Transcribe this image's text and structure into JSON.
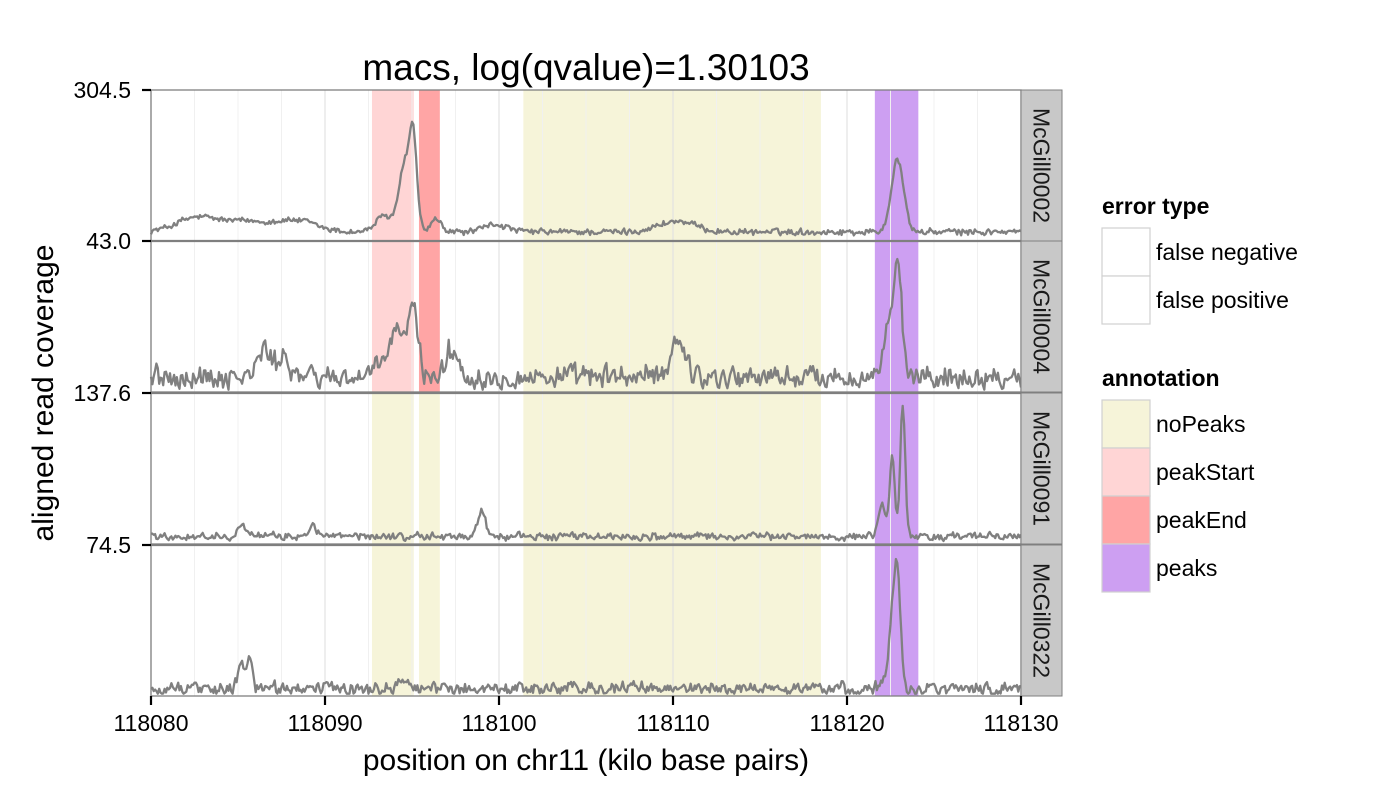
{
  "chart_data": {
    "type": "line",
    "title": "macs, log(qvalue)=1.30103",
    "xlabel": "position on chr11 (kilo base pairs)",
    "ylabel": "aligned read coverage",
    "xlim": [
      118080,
      118130
    ],
    "x_ticks": [
      118080,
      118090,
      118100,
      118110,
      118120,
      118130
    ],
    "x_tick_labels": [
      "118080",
      "118090",
      "118100",
      "118110",
      "118120",
      "118130"
    ],
    "grid": true,
    "legend_position": "right",
    "line_color": "#808080",
    "panels": [
      {
        "name": "McGill0002",
        "y_tick_label": "304.5",
        "ymax": 304.5,
        "annotations": [
          {
            "type": "peakStart",
            "start": 118092.7,
            "end": 118095.1
          },
          {
            "type": "peakEnd",
            "start": 118095.4,
            "end": 118096.6
          },
          {
            "type": "noPeaks",
            "start": 118101.4,
            "end": 118118.5
          },
          {
            "type": "peaks",
            "start": 118121.6,
            "end": 118124.1
          }
        ],
        "profile": {
          "baseline": 0.06,
          "noise": 0.025,
          "bumps": [
            {
              "x": 118082.5,
              "h": 0.08,
              "w": 1.6
            },
            {
              "x": 118085.5,
              "h": 0.07,
              "w": 2.5
            },
            {
              "x": 118088.5,
              "h": 0.06,
              "w": 1.5
            },
            {
              "x": 118093.4,
              "h": 0.1,
              "w": 0.7
            },
            {
              "x": 118094.7,
              "h": 0.5,
              "w": 0.55
            },
            {
              "x": 118095.1,
              "h": 0.4,
              "w": 0.25
            },
            {
              "x": 118096.4,
              "h": 0.08,
              "w": 0.4
            },
            {
              "x": 118099.8,
              "h": 0.05,
              "w": 0.9
            },
            {
              "x": 118110.2,
              "h": 0.07,
              "w": 1.5
            },
            {
              "x": 118122.9,
              "h": 0.48,
              "w": 0.5
            }
          ]
        }
      },
      {
        "name": "McGill0004",
        "y_tick_label": "43.0",
        "ymax": 43.0,
        "annotations": [
          {
            "type": "peakStart",
            "start": 118092.7,
            "end": 118095.1
          },
          {
            "type": "peakEnd",
            "start": 118095.4,
            "end": 118096.6
          },
          {
            "type": "noPeaks",
            "start": 118101.4,
            "end": 118118.5
          },
          {
            "type": "peaks",
            "start": 118121.6,
            "end": 118124.1
          }
        ],
        "profile": {
          "baseline": 0.1,
          "noise": 0.09,
          "bumps": [
            {
              "x": 118086.5,
              "h": 0.18,
              "w": 0.5
            },
            {
              "x": 118087.6,
              "h": 0.14,
              "w": 0.5
            },
            {
              "x": 118094.2,
              "h": 0.3,
              "w": 0.9
            },
            {
              "x": 118095.1,
              "h": 0.35,
              "w": 0.35
            },
            {
              "x": 118097.3,
              "h": 0.18,
              "w": 0.5
            },
            {
              "x": 118110.3,
              "h": 0.25,
              "w": 0.6
            },
            {
              "x": 118122.3,
              "h": 0.3,
              "w": 0.35
            },
            {
              "x": 118122.9,
              "h": 0.7,
              "w": 0.35
            }
          ]
        }
      },
      {
        "name": "McGill0091",
        "y_tick_label": "137.6",
        "ymax": 137.6,
        "annotations": [
          {
            "type": "noPeaks",
            "start": 118092.7,
            "end": 118095.1
          },
          {
            "type": "noPeaks",
            "start": 118095.4,
            "end": 118096.6
          },
          {
            "type": "noPeaks",
            "start": 118101.4,
            "end": 118118.5
          },
          {
            "type": "peaks",
            "start": 118121.6,
            "end": 118124.1
          }
        ],
        "profile": {
          "baseline": 0.05,
          "noise": 0.03,
          "bumps": [
            {
              "x": 118085.2,
              "h": 0.1,
              "w": 0.3
            },
            {
              "x": 118089.3,
              "h": 0.08,
              "w": 0.3
            },
            {
              "x": 118099.0,
              "h": 0.18,
              "w": 0.3
            },
            {
              "x": 118122.0,
              "h": 0.2,
              "w": 0.3
            },
            {
              "x": 118122.6,
              "h": 0.55,
              "w": 0.2
            },
            {
              "x": 118123.2,
              "h": 0.88,
              "w": 0.2
            }
          ]
        }
      },
      {
        "name": "McGill0322",
        "y_tick_label": "74.5",
        "ymax": 74.5,
        "annotations": [
          {
            "type": "noPeaks",
            "start": 118092.7,
            "end": 118095.1
          },
          {
            "type": "noPeaks",
            "start": 118095.4,
            "end": 118096.6
          },
          {
            "type": "noPeaks",
            "start": 118101.4,
            "end": 118118.5
          },
          {
            "type": "peaks",
            "start": 118121.6,
            "end": 118124.1
          }
        ],
        "profile": {
          "baseline": 0.05,
          "noise": 0.05,
          "bumps": [
            {
              "x": 118085.2,
              "h": 0.15,
              "w": 0.3
            },
            {
              "x": 118085.7,
              "h": 0.2,
              "w": 0.2
            },
            {
              "x": 118094.5,
              "h": 0.05,
              "w": 0.5
            },
            {
              "x": 118122.7,
              "h": 0.5,
              "w": 0.4
            },
            {
              "x": 118122.9,
              "h": 0.45,
              "w": 0.25
            }
          ]
        }
      }
    ]
  },
  "legend": {
    "error_type": {
      "title": "error type",
      "items": [
        {
          "label": "false negative",
          "color": "#ffffff"
        },
        {
          "label": "false positive",
          "color": "#ffffff"
        }
      ]
    },
    "annotation": {
      "title": "annotation",
      "items": [
        {
          "label": "noPeaks",
          "color": "#f6f4d9"
        },
        {
          "label": "peakStart",
          "color": "#ffd5d5"
        },
        {
          "label": "peakEnd",
          "color": "#ffa5a5"
        },
        {
          "label": "peaks",
          "color": "#cd9ff2"
        }
      ]
    }
  }
}
